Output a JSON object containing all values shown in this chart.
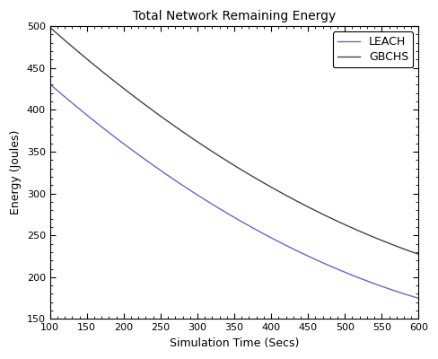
{
  "title": "Total Network Remaining Energy",
  "xlabel": "Simulation Time (Secs)",
  "ylabel": "Energy (Joules)",
  "xlim": [
    100,
    600
  ],
  "ylim": [
    150,
    500
  ],
  "xticks": [
    100,
    150,
    200,
    250,
    300,
    350,
    400,
    450,
    500,
    550,
    600
  ],
  "yticks": [
    150,
    200,
    250,
    300,
    350,
    400,
    450,
    500
  ],
  "leach_color": "#6666cc",
  "gbchs_color": "#444444",
  "leach_label": "LEACH",
  "gbchs_label": "GBCHS",
  "leach_x": [
    100,
    150,
    200,
    250,
    300,
    350,
    400,
    450,
    500,
    550,
    600
  ],
  "leach_y": [
    425,
    400,
    360,
    328,
    300,
    272,
    243,
    222,
    207,
    191,
    175
  ],
  "gbchs_x": [
    100,
    150,
    200,
    250,
    300,
    350,
    400,
    450,
    500,
    550,
    600
  ],
  "gbchs_y": [
    498,
    462,
    425,
    392,
    358,
    340,
    307,
    282,
    262,
    244,
    228
  ],
  "legend_loc": "upper right",
  "background_color": "#ffffff",
  "title_fontsize": 10,
  "axis_label_fontsize": 9,
  "tick_fontsize": 8,
  "legend_fontsize": 9,
  "line_width": 1.0,
  "figsize": [
    4.88,
    4.0
  ],
  "dpi": 100
}
